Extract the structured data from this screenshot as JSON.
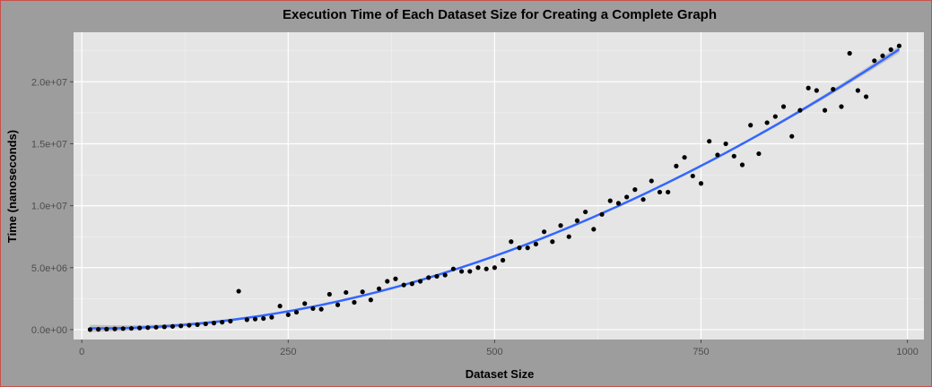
{
  "colors": {
    "figure_background": "#9d9d9d",
    "panel_background": "#e5e5e5",
    "grid_major": "#ffffff",
    "grid_minor": "#f2f2f2",
    "point": "#000000",
    "smooth_line": "#3366ff",
    "confidence_band": "#b3b3b3",
    "border": "#c9504b"
  },
  "chart_data": {
    "type": "scatter",
    "title": "Execution Time of Each Dataset Size for Creating a Complete Graph",
    "xlabel": "Dataset Size",
    "ylabel": "Time (nanoseconds)",
    "xlim": [
      -10,
      1020
    ],
    "ylim": [
      -800000,
      24000000
    ],
    "x_ticks": [
      0,
      250,
      500,
      750,
      1000
    ],
    "x_tick_labels": [
      "0",
      "250",
      "500",
      "750",
      "1000"
    ],
    "y_ticks": [
      0,
      5000000,
      10000000,
      15000000,
      20000000
    ],
    "y_tick_labels": [
      "0.0e+00",
      "5.0e+06",
      "1.0e+07",
      "1.5e+07",
      "2.0e+07"
    ],
    "grid": true,
    "legend": "none",
    "smooth": {
      "method": "loess",
      "confidence_band": true,
      "color": "#3366ff"
    },
    "series": [
      {
        "x": [
          10,
          20,
          30,
          40,
          50,
          60,
          70,
          80,
          90,
          100,
          110,
          120,
          130,
          140,
          150,
          160,
          170,
          180,
          190,
          200,
          210,
          220,
          230,
          240,
          250,
          260,
          270,
          280,
          290,
          300,
          310,
          320,
          330,
          340,
          350,
          360,
          370,
          380,
          390,
          400,
          410,
          420,
          430,
          440,
          450,
          460,
          470,
          480,
          490,
          500,
          510,
          520,
          530,
          540,
          550,
          560,
          570,
          580,
          590,
          600,
          610,
          620,
          630,
          640,
          650,
          660,
          670,
          680,
          690,
          700,
          710,
          720,
          730,
          740,
          750,
          760,
          770,
          780,
          790,
          800,
          810,
          820,
          830,
          840,
          850,
          860,
          870,
          880,
          890,
          900,
          910,
          920,
          930,
          940,
          950,
          960,
          970,
          980,
          990
        ],
        "y": [
          5000,
          20000,
          40000,
          60000,
          80000,
          100000,
          130000,
          160000,
          190000,
          220000,
          260000,
          300000,
          350000,
          400000,
          460000,
          530000,
          600000,
          680000,
          3100000,
          800000,
          850000,
          900000,
          1000000,
          1900000,
          1200000,
          1400000,
          2100000,
          1700000,
          1650000,
          2850000,
          2000000,
          3000000,
          2200000,
          3050000,
          2400000,
          3300000,
          3900000,
          4100000,
          3600000,
          3700000,
          3900000,
          4200000,
          4300000,
          4400000,
          4900000,
          4700000,
          4700000,
          5000000,
          4900000,
          5000000,
          5600000,
          7100000,
          6600000,
          6600000,
          6900000,
          7900000,
          7100000,
          8400000,
          7500000,
          8800000,
          9500000,
          8100000,
          9300000,
          10400000,
          10200000,
          10700000,
          11300000,
          10500000,
          12000000,
          11100000,
          11100000,
          13200000,
          13900000,
          12400000,
          11800000,
          15200000,
          14100000,
          15000000,
          14000000,
          13300000,
          16500000,
          14200000,
          16700000,
          17200000,
          18000000,
          15600000,
          17700000,
          19500000,
          19300000,
          17700000,
          19400000,
          18000000,
          22300000,
          19300000,
          18800000,
          21700000,
          22100000,
          22600000,
          22900000
        ]
      }
    ]
  }
}
